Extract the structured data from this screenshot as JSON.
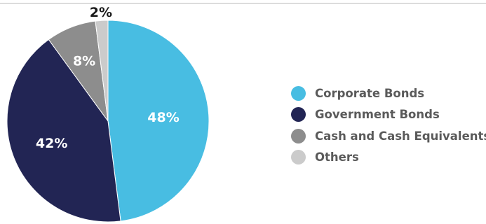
{
  "chart_data": {
    "type": "pie",
    "categories": [
      "Corporate Bonds",
      "Government Bonds",
      "Cash and Cash Equivalents",
      "Others"
    ],
    "values": [
      48,
      42,
      8,
      2
    ],
    "value_labels": [
      "48%",
      "42%",
      "8%",
      "2%"
    ],
    "colors": [
      "#48bde2",
      "#222554",
      "#8d8d8d",
      "#cbcbcb"
    ],
    "label_colors": [
      "#ffffff",
      "#ffffff",
      "#ffffff",
      "#1a1a1a"
    ],
    "start_angle": "12 o'clock",
    "direction": "clockwise",
    "legend_position": "right"
  }
}
